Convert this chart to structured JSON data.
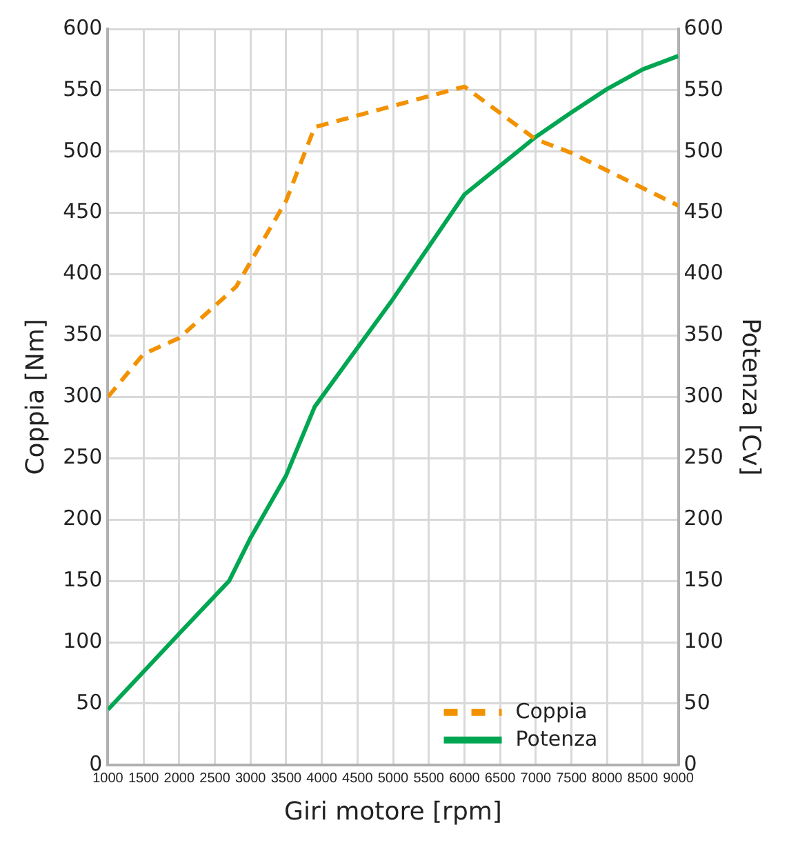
{
  "chart_data": {
    "type": "line",
    "xlabel": "Giri motore [rpm]",
    "ylabel": "Coppia [Nm]",
    "y2label": "Potenza [Cv]",
    "xlim": [
      1000,
      9000
    ],
    "xticks": [
      1000,
      1500,
      2000,
      2500,
      3000,
      3500,
      4000,
      4500,
      5000,
      5500,
      6000,
      6500,
      7000,
      7500,
      8000,
      8500,
      9000
    ],
    "ylim": [
      0,
      600
    ],
    "yticks": [
      0,
      50,
      100,
      150,
      200,
      250,
      300,
      350,
      400,
      450,
      500,
      550,
      600
    ],
    "y2lim": [
      0,
      600
    ],
    "y2ticks": [
      0,
      50,
      100,
      150,
      200,
      250,
      300,
      350,
      400,
      450,
      500,
      550,
      600
    ],
    "grid": true,
    "legend": "bottom right",
    "marker": "none",
    "series": [
      {
        "name": "Coppia",
        "color": "#f39200",
        "line_style": "dashed",
        "x": [
          1000,
          1500,
          2000,
          2800,
          3500,
          3900,
          6000,
          7000,
          7500,
          9000
        ],
        "values": [
          300,
          335,
          348,
          390,
          460,
          520,
          553,
          510,
          499,
          456
        ]
      },
      {
        "name": "Potenza",
        "color": "#00a651",
        "line_style": "solid",
        "axis": "y2",
        "x": [
          1000,
          2000,
          2700,
          3000,
          3500,
          3900,
          5000,
          6000,
          7000,
          7500,
          8000,
          8500,
          9000
        ],
        "values": [
          45,
          107,
          150,
          185,
          236,
          292,
          380,
          465,
          512,
          532,
          551,
          567,
          578
        ]
      }
    ]
  }
}
